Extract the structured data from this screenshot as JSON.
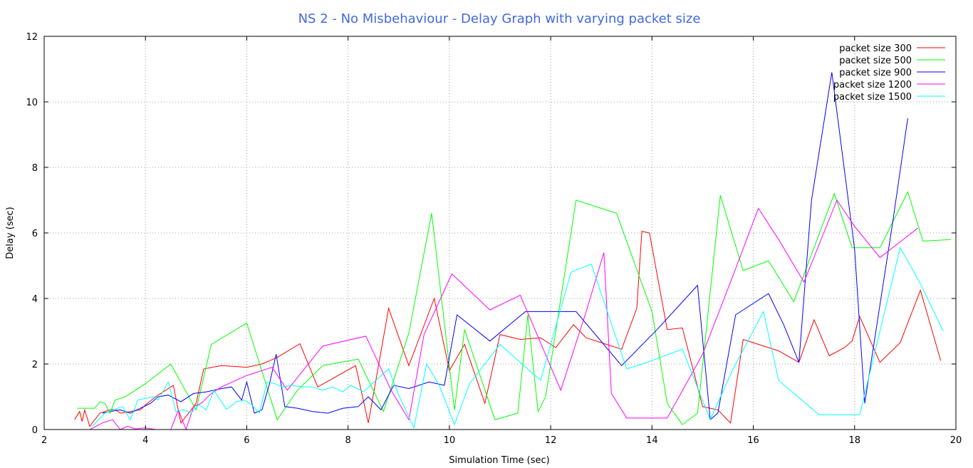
{
  "chart_data": {
    "type": "line",
    "title": "NS 2 - No Misbehaviour - Delay Graph with varying packet size",
    "title_color": "#4169e1",
    "xlabel": "Simulation Time (sec)",
    "ylabel": "Delay (sec)",
    "xlim": [
      2,
      20
    ],
    "ylim": [
      0,
      12
    ],
    "xticks": [
      2,
      4,
      6,
      8,
      10,
      12,
      14,
      16,
      18,
      20
    ],
    "yticks": [
      0,
      2,
      4,
      6,
      8,
      10,
      12
    ],
    "xtick_labels": [
      "2",
      "4",
      "6",
      "8",
      "10",
      "12",
      "14",
      "16",
      "18",
      "20"
    ],
    "ytick_labels": [
      "0",
      "2",
      "4",
      "6",
      "8",
      "10",
      "12"
    ],
    "grid": true,
    "legend_position": "top-right",
    "series": [
      {
        "name": "packet size 300",
        "color": "#ff0000",
        "x": [
          2.6,
          2.7,
          2.75,
          2.8,
          2.9,
          3.0,
          3.1,
          3.2,
          3.3,
          3.4,
          3.5,
          3.6,
          3.7,
          3.8,
          3.9,
          4.0,
          4.2,
          4.55,
          4.7,
          4.85,
          5.0,
          5.15,
          5.5,
          6.0,
          6.3,
          6.6,
          7.05,
          7.4,
          8.15,
          8.4,
          8.8,
          9.2,
          9.7,
          10.0,
          10.3,
          10.7,
          11.0,
          11.4,
          11.8,
          12.1,
          12.45,
          12.7,
          13.1,
          13.4,
          13.7,
          13.8,
          13.95,
          14.3,
          14.6,
          15.0,
          15.3,
          15.55,
          15.8,
          16.0,
          16.5,
          16.9,
          17.2,
          17.5,
          17.8,
          17.95,
          18.1,
          18.5,
          18.9,
          19.3,
          19.7
        ],
        "y": [
          0.3,
          0.55,
          0.25,
          0.6,
          0.1,
          0.3,
          0.5,
          0.55,
          0.6,
          0.62,
          0.5,
          0.52,
          0.55,
          0.58,
          0.6,
          0.75,
          1.0,
          1.35,
          0.2,
          0.5,
          0.8,
          1.85,
          1.95,
          1.9,
          2.0,
          2.2,
          2.62,
          1.3,
          1.95,
          0.2,
          3.7,
          1.95,
          4.0,
          1.8,
          2.6,
          0.8,
          2.9,
          2.75,
          2.8,
          2.5,
          3.2,
          2.8,
          2.6,
          2.45,
          3.7,
          6.05,
          6.0,
          3.05,
          3.1,
          0.7,
          0.6,
          0.2,
          2.75,
          2.65,
          2.4,
          2.05,
          3.35,
          2.25,
          2.5,
          2.7,
          3.45,
          2.05,
          2.65,
          4.25,
          2.1
        ]
      },
      {
        "name": "packet size 500",
        "color": "#00ff00",
        "x": [
          2.65,
          3.0,
          3.05,
          3.1,
          3.2,
          3.3,
          3.4,
          3.5,
          3.6,
          3.7,
          4.0,
          4.5,
          5.0,
          5.3,
          6.0,
          6.6,
          7.0,
          7.5,
          8.2,
          8.7,
          9.2,
          9.65,
          10.1,
          10.3,
          10.9,
          11.35,
          11.55,
          11.75,
          11.9,
          12.5,
          13.3,
          14.0,
          14.3,
          14.6,
          14.9,
          15.35,
          15.8,
          16.3,
          16.8,
          17.6,
          17.95,
          18.5,
          19.05,
          19.35,
          19.9
        ],
        "y": [
          0.65,
          0.65,
          0.75,
          0.85,
          0.8,
          0.5,
          0.9,
          0.95,
          1.0,
          1.1,
          1.4,
          2.0,
          0.6,
          2.6,
          3.25,
          0.3,
          1.2,
          1.95,
          2.15,
          0.55,
          2.95,
          6.6,
          0.6,
          3.05,
          0.3,
          0.5,
          3.5,
          0.55,
          1.0,
          7.0,
          6.6,
          3.6,
          0.8,
          0.15,
          0.5,
          7.15,
          4.85,
          5.15,
          3.9,
          7.2,
          5.55,
          5.55,
          7.25,
          5.75,
          5.8
        ]
      },
      {
        "name": "packet size 900",
        "color": "#0000ff",
        "x": [
          3.15,
          3.3,
          3.5,
          3.7,
          3.9,
          4.1,
          4.25,
          4.45,
          4.7,
          4.95,
          5.2,
          5.5,
          5.7,
          5.9,
          6.0,
          6.15,
          6.3,
          6.45,
          6.58,
          6.75,
          7.0,
          7.3,
          7.6,
          7.9,
          8.2,
          8.4,
          8.65,
          8.9,
          9.2,
          9.6,
          9.9,
          10.15,
          10.8,
          11.5,
          12.0,
          12.5,
          13.4,
          14.1,
          14.9,
          15.15,
          15.3,
          15.65,
          16.3,
          16.6,
          16.9,
          17.15,
          17.55,
          18.0,
          18.2,
          18.75,
          19.05
        ],
        "y": [
          0.5,
          0.55,
          0.6,
          0.5,
          0.65,
          0.8,
          1.0,
          1.05,
          0.85,
          1.1,
          1.15,
          1.25,
          1.3,
          0.9,
          1.45,
          0.5,
          0.6,
          1.4,
          2.3,
          0.7,
          0.65,
          0.55,
          0.5,
          0.65,
          0.7,
          1.0,
          0.6,
          1.35,
          1.25,
          1.45,
          1.35,
          3.5,
          2.7,
          3.6,
          3.6,
          3.6,
          1.95,
          3.05,
          4.4,
          0.3,
          0.5,
          3.5,
          4.15,
          3.2,
          2.05,
          7.0,
          10.9,
          5.5,
          0.8,
          6.3,
          9.5
        ]
      },
      {
        "name": "packet size 1200",
        "color": "#ff00ff",
        "x": [
          2.9,
          3.15,
          3.35,
          3.5,
          3.65,
          3.8,
          4.0,
          4.2,
          4.5,
          4.65,
          4.8,
          4.95,
          5.1,
          5.3,
          5.5,
          6.0,
          6.5,
          6.8,
          7.5,
          8.35,
          8.85,
          9.2,
          9.5,
          10.05,
          10.8,
          11.4,
          12.2,
          12.7,
          13.05,
          13.2,
          13.5,
          14.3,
          15.0,
          15.6,
          16.1,
          16.5,
          17.0,
          17.65,
          18.0,
          18.5,
          19.25
        ],
        "y": [
          0.0,
          0.2,
          0.3,
          0.0,
          0.1,
          0.02,
          0.05,
          0.0,
          0.0,
          0.6,
          0.0,
          0.7,
          0.8,
          1.1,
          1.3,
          1.65,
          1.9,
          1.2,
          2.55,
          2.85,
          1.2,
          0.3,
          2.9,
          4.75,
          3.65,
          4.1,
          1.2,
          3.6,
          5.4,
          1.1,
          0.35,
          0.35,
          2.3,
          4.7,
          6.75,
          5.8,
          4.5,
          7.0,
          6.2,
          5.25,
          6.15
        ]
      },
      {
        "name": "packet size 1500",
        "color": "#00ffff",
        "x": [
          2.95,
          3.2,
          3.45,
          3.55,
          3.7,
          3.85,
          4.0,
          4.15,
          4.25,
          4.45,
          4.6,
          4.75,
          4.9,
          5.05,
          5.2,
          5.35,
          5.6,
          5.8,
          5.95,
          6.1,
          6.25,
          6.4,
          6.55,
          6.7,
          6.9,
          7.1,
          7.3,
          7.5,
          7.7,
          7.9,
          8.05,
          8.3,
          8.55,
          8.8,
          9.0,
          9.3,
          9.55,
          9.8,
          10.1,
          10.4,
          11.0,
          11.8,
          12.4,
          12.8,
          13.5,
          13.9,
          14.6,
          15.15,
          15.6,
          16.2,
          16.5,
          17.3,
          18.1,
          18.9,
          19.3,
          19.75
        ],
        "y": [
          0.1,
          0.5,
          0.65,
          0.7,
          0.3,
          0.9,
          0.95,
          1.0,
          0.9,
          1.45,
          0.55,
          0.6,
          0.5,
          0.75,
          0.6,
          1.2,
          0.62,
          0.85,
          0.9,
          0.75,
          0.5,
          1.45,
          1.4,
          1.3,
          1.35,
          1.3,
          1.3,
          1.2,
          1.3,
          1.15,
          1.35,
          1.15,
          1.5,
          1.85,
          1.05,
          0.05,
          2.0,
          1.35,
          0.15,
          1.4,
          2.6,
          1.5,
          4.8,
          5.05,
          1.85,
          2.05,
          2.45,
          0.3,
          1.85,
          3.6,
          1.5,
          0.45,
          0.45,
          5.55,
          4.45,
          3.0
        ]
      }
    ]
  }
}
